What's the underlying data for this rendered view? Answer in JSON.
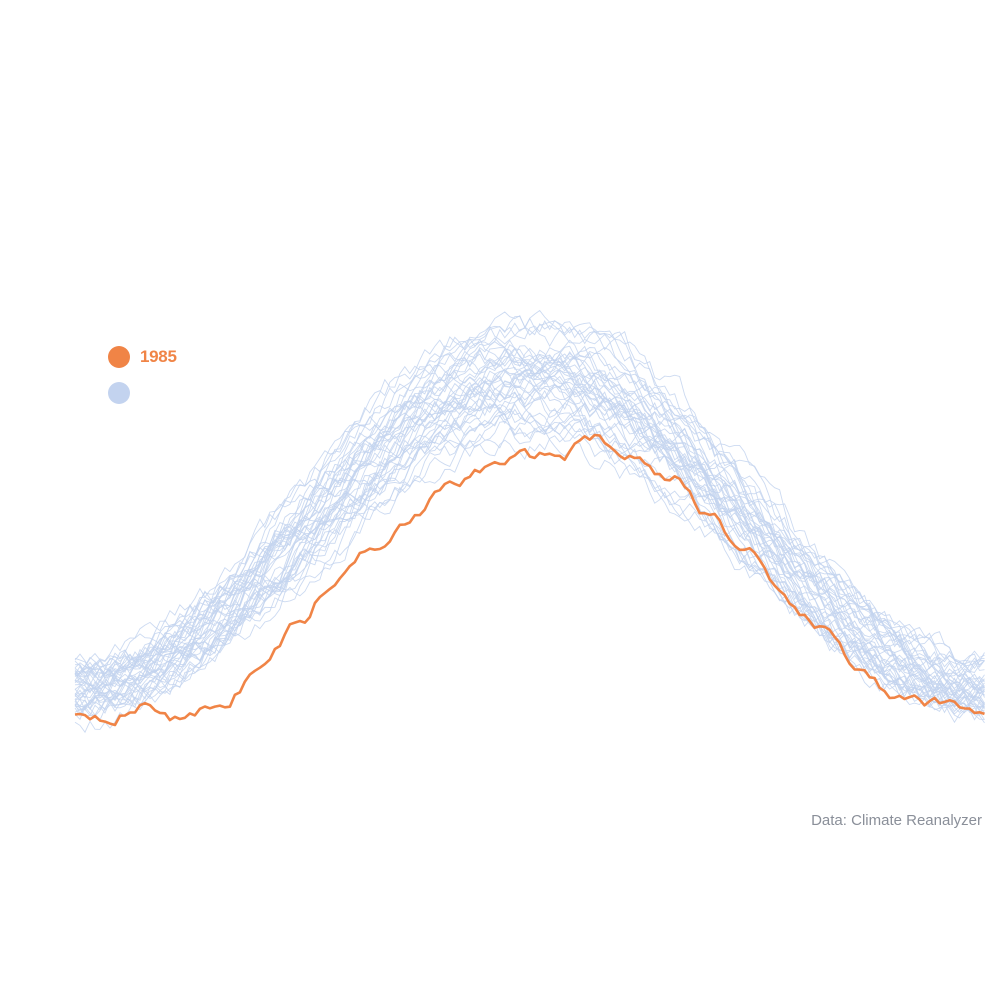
{
  "legend": {
    "highlight_label": "1985",
    "others_label": ""
  },
  "source": "Data: Climate Reanalyzer",
  "colors": {
    "highlight": "#f08446",
    "others": "#c3d3ef"
  },
  "chart_data": {
    "type": "line",
    "title": "",
    "xlabel": "",
    "ylabel": "",
    "grid": false,
    "legend_position": "top-left",
    "x_domain": [
      1,
      366
    ],
    "y_domain_relative": [
      0,
      1
    ],
    "highlight_series": {
      "name": "1985",
      "x": [
        1,
        15,
        30,
        45,
        60,
        75,
        90,
        105,
        120,
        135,
        150,
        165,
        180,
        195,
        210,
        225,
        240,
        255,
        270,
        285,
        300,
        315,
        330,
        345,
        366
      ],
      "values": [
        0.03,
        0.02,
        0.05,
        0.0,
        0.06,
        0.18,
        0.33,
        0.48,
        0.61,
        0.71,
        0.8,
        0.87,
        0.91,
        0.92,
        0.98,
        0.91,
        0.84,
        0.72,
        0.57,
        0.4,
        0.31,
        0.19,
        0.06,
        0.05,
        0.04
      ]
    },
    "other_series_note": "many other years shown unlabeled as thin light-blue lines"
  }
}
